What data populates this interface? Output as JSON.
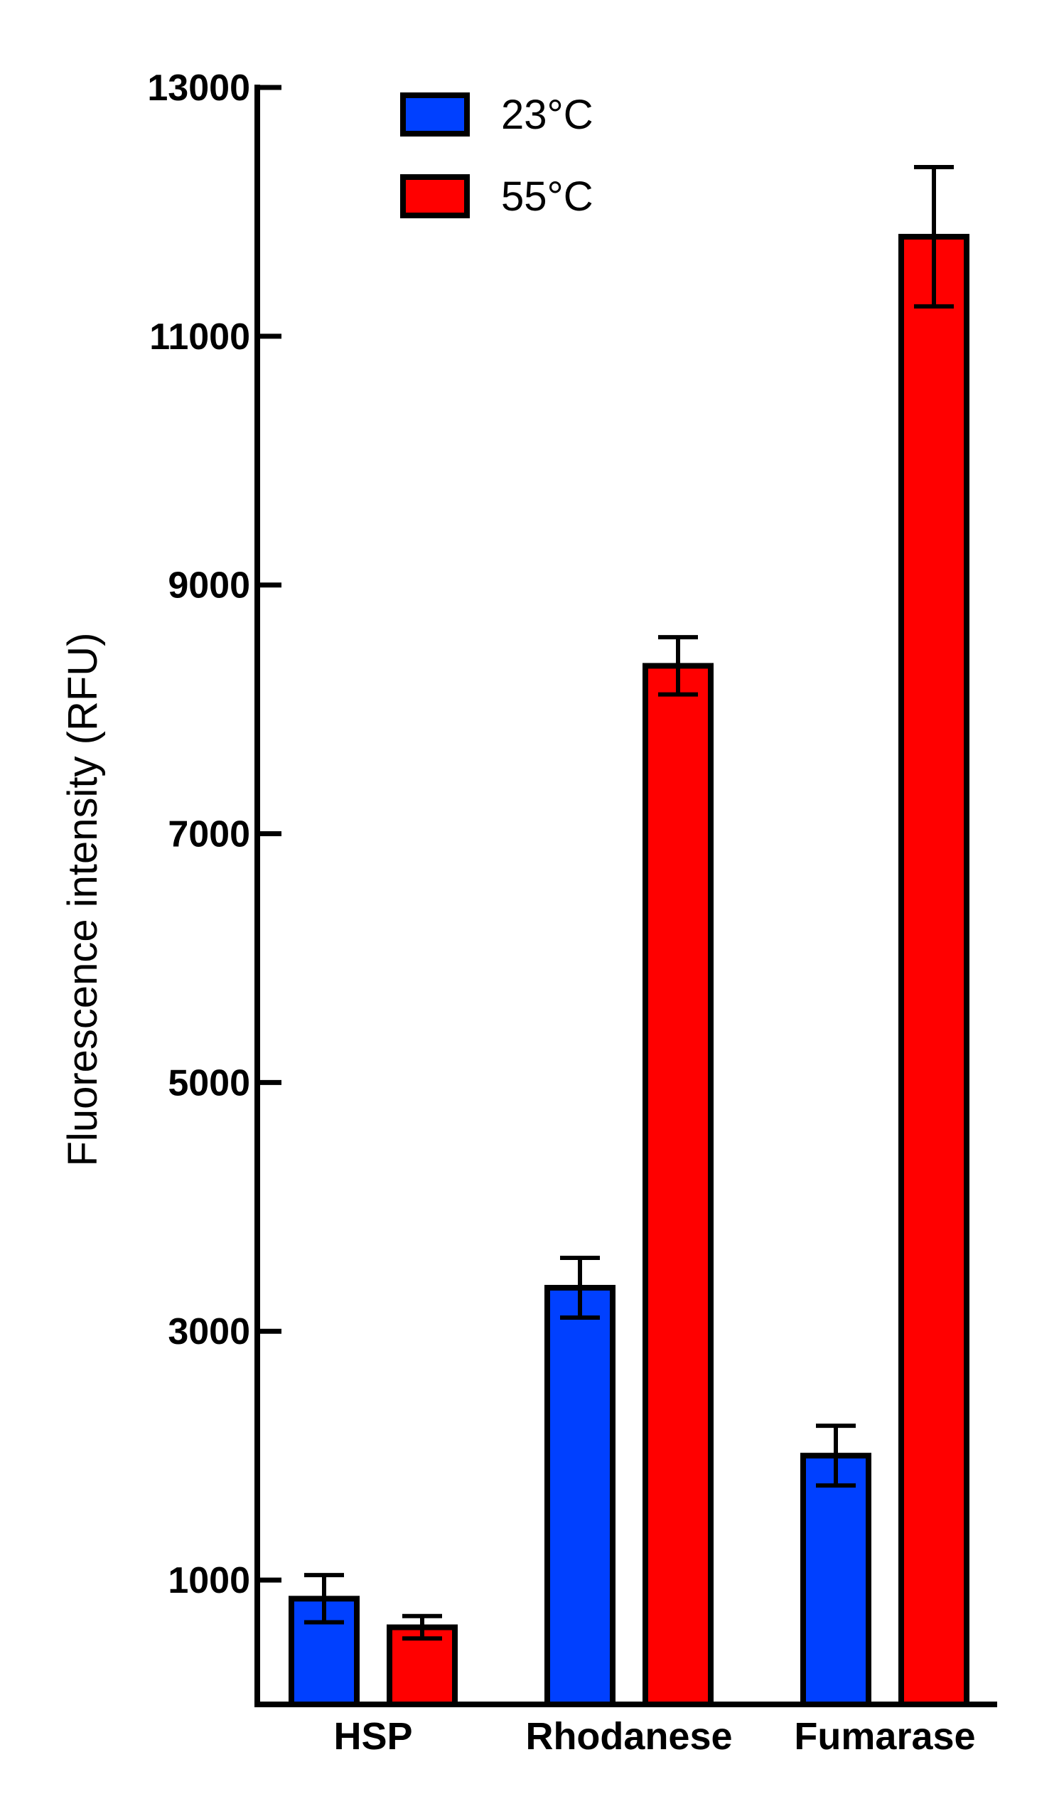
{
  "chart_data": {
    "type": "bar",
    "ylabel": "Fluorescence intensity (RFU)",
    "xlabel": "",
    "ylim": [
      0,
      13000
    ],
    "yticks": [
      1000,
      3000,
      5000,
      7000,
      9000,
      11000,
      13000
    ],
    "categories": [
      "HSP",
      "Rhodanese",
      "Fumarase"
    ],
    "legend_position": "top-left",
    "grid": false,
    "series": [
      {
        "name": "23°C",
        "color": "#0040ff",
        "values": [
          850,
          3350,
          2000
        ],
        "errors": [
          190,
          240,
          240
        ]
      },
      {
        "name": "55°C",
        "color": "#ff0000",
        "values": [
          620,
          8350,
          11800
        ],
        "errors": [
          90,
          230,
          560
        ]
      }
    ]
  }
}
